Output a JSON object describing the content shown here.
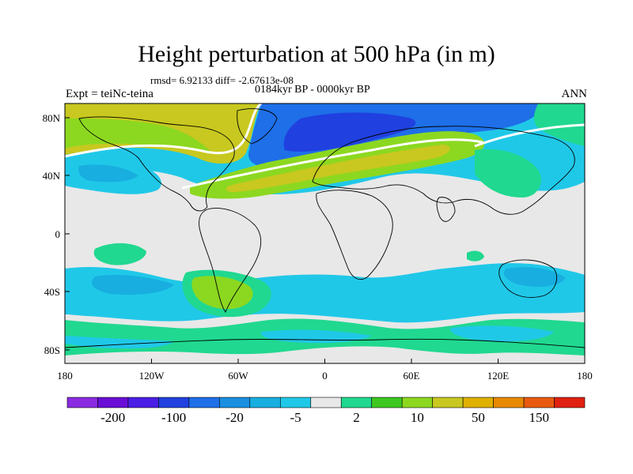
{
  "title": "Height perturbation at 500 hPa (in m)",
  "stats": "rmsd= 6.92133 diff= -2.67613e-08",
  "period": "0184kyr BP - 0000kyr BP",
  "experiment": "Expt = teiNc-teina",
  "season": "ANN",
  "lat_ticks": [
    "80N",
    "40N",
    "0",
    "40S",
    "80S"
  ],
  "lon_ticks": [
    "180",
    "120W",
    "60W",
    "0",
    "60E",
    "120E",
    "180"
  ],
  "colorbar": {
    "colors": [
      "#8a2be2",
      "#6a0dd6",
      "#4b1ee6",
      "#2040e0",
      "#1e6fe8",
      "#1a8fe0",
      "#18aee0",
      "#20c8e8",
      "#e8e8e8",
      "#20d890",
      "#3cc820",
      "#8cd820",
      "#c8c820",
      "#e0b000",
      "#e88a00",
      "#e85a10",
      "#e02010"
    ],
    "labels": [
      "-200",
      "-100",
      "-20",
      "-5",
      "2",
      "10",
      "50",
      "150"
    ]
  }
}
